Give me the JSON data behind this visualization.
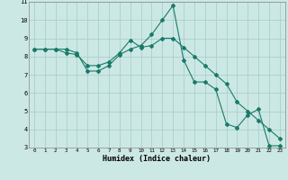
{
  "xlabel": "Humidex (Indice chaleur)",
  "background_color": "#cce8e4",
  "grid_color": "#aad0cc",
  "line_color": "#1a7a6a",
  "xlim": [
    -0.5,
    23.5
  ],
  "ylim": [
    3,
    11
  ],
  "yticks": [
    3,
    4,
    5,
    6,
    7,
    8,
    9,
    10,
    11
  ],
  "xticks": [
    0,
    1,
    2,
    3,
    4,
    5,
    6,
    7,
    8,
    9,
    10,
    11,
    12,
    13,
    14,
    15,
    16,
    17,
    18,
    19,
    20,
    21,
    22,
    23
  ],
  "line1_x": [
    0,
    1,
    2,
    3,
    4,
    5,
    6,
    7,
    8,
    9,
    10,
    11,
    12,
    13,
    14,
    15,
    16,
    17,
    18,
    19,
    20,
    21,
    22,
    23
  ],
  "line1_y": [
    8.4,
    8.4,
    8.4,
    8.4,
    8.2,
    7.2,
    7.2,
    7.5,
    8.1,
    8.4,
    8.6,
    9.2,
    10.0,
    10.8,
    7.8,
    6.6,
    6.6,
    6.2,
    4.3,
    4.1,
    4.8,
    5.1,
    3.1,
    3.1
  ],
  "line2_x": [
    0,
    1,
    2,
    3,
    4,
    5,
    6,
    7,
    8,
    9,
    10,
    11,
    12,
    13,
    14,
    15,
    16,
    17,
    18,
    19,
    20,
    21,
    22,
    23
  ],
  "line2_y": [
    8.4,
    8.4,
    8.4,
    8.2,
    8.1,
    7.5,
    7.5,
    7.7,
    8.2,
    8.9,
    8.5,
    8.6,
    9.0,
    9.0,
    8.5,
    8.0,
    7.5,
    7.0,
    6.5,
    5.5,
    5.0,
    4.5,
    4.0,
    3.5
  ]
}
